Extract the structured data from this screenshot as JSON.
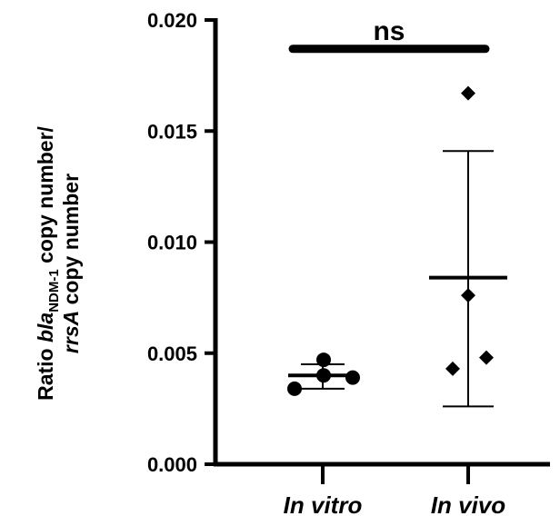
{
  "chart_data": {
    "type": "scatter",
    "title": "",
    "ylabel_line1": {
      "prefix": "Ratio ",
      "gene": "bla",
      "subscript": "NDM-1",
      "suffix": " copy number/"
    },
    "ylabel_line2": {
      "gene": "rrsA",
      "suffix": " copy number"
    },
    "ylim": [
      0,
      0.02
    ],
    "yticks": [
      0.0,
      0.005,
      0.01,
      0.015,
      0.02
    ],
    "ytick_labels": [
      "0.000",
      "0.005",
      "0.010",
      "0.015",
      "0.020"
    ],
    "categories": [
      "In vitro",
      "In vivo"
    ],
    "series": [
      {
        "category": "In vitro",
        "marker": "circle",
        "points": [
          0.0034,
          0.004,
          0.0039,
          0.0047
        ],
        "mean": 0.004,
        "error_low": 0.0034,
        "error_high": 0.0045
      },
      {
        "category": "In vivo",
        "marker": "diamond",
        "points": [
          0.0043,
          0.0076,
          0.0048,
          0.0167
        ],
        "mean": 0.0084,
        "error_low": 0.0026,
        "error_high": 0.0141
      }
    ],
    "significance": {
      "label": "ns",
      "y": 0.0187
    },
    "grid": false,
    "legend": "none"
  }
}
